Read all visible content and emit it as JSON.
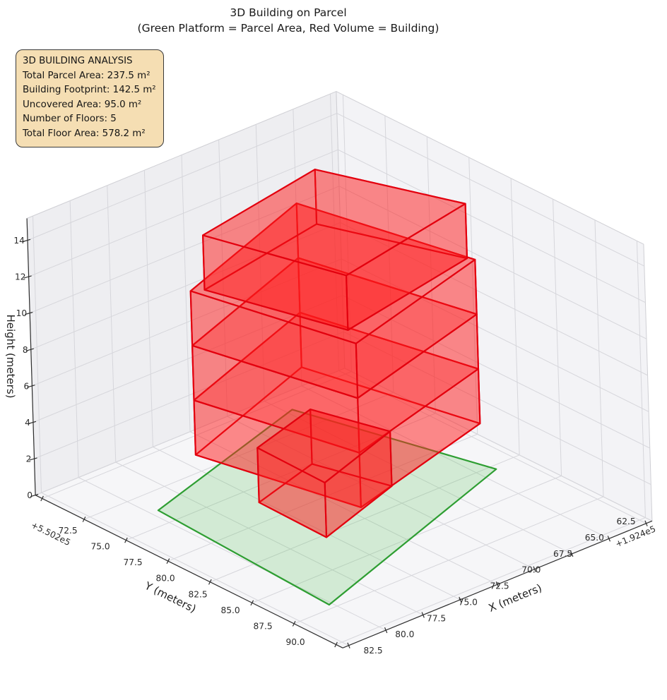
{
  "title": {
    "line1": "3D Building on Parcel",
    "line2": "(Green Platform = Parcel Area, Red Volume = Building)"
  },
  "info_box": {
    "title": "3D BUILDING ANALYSIS",
    "lines": [
      "Total Parcel Area: 237.5 m²",
      "Building Footprint: 142.5 m²",
      "Uncovered Area: 95.0 m²",
      "Number of Floors: 5",
      "Total Floor Area: 578.2 m²"
    ],
    "bg_color": "#f5deb3"
  },
  "chart_data": {
    "type": "3d-building-extrusion",
    "title": "3D Building on Parcel",
    "subtitle": "(Green Platform = Parcel Area, Red Volume = Building)",
    "axes": {
      "x": {
        "label": "X (meters)",
        "ticks": [
          62.5,
          65.0,
          67.5,
          70.0,
          72.5,
          75.0,
          77.5,
          80.0,
          82.5
        ],
        "offset_text": "+1.924e5",
        "range": [
          62.1,
          82.9
        ]
      },
      "y": {
        "label": "Y (meters)",
        "ticks": [
          72.5,
          75.0,
          77.5,
          80.0,
          82.5,
          85.0,
          87.5,
          90.0
        ],
        "offset_text": "+5.502e5",
        "range": [
          72.1,
          90.4
        ]
      },
      "z": {
        "label": "Height (meters)",
        "ticks": [
          0,
          2,
          4,
          6,
          8,
          10,
          12,
          14
        ],
        "range": [
          0,
          15.2
        ]
      }
    },
    "parcel": {
      "name": "parcel-platform",
      "polygon_xy": [
        [
          79.5,
          76.4
        ],
        [
          67.1,
          73.4
        ],
        [
          64.0,
          82.8
        ],
        [
          80.2,
          87.2
        ]
      ],
      "z": 0,
      "edge_color": "#2e9e32",
      "fill_color": "rgba(70,190,70,0.20)"
    },
    "building": {
      "n_floors": 5,
      "floor_height_m": 3,
      "edge_color": "#e3000e",
      "fill_color": "rgba(255,30,30,0.30)",
      "parts": [
        {
          "name": "floors-2-4-main-mass",
          "footprint_xy": [
            [
              78.0,
              77.4
            ],
            [
              67.6,
              74.5
            ],
            [
              65.2,
              83.0
            ],
            [
              75.8,
              85.3
            ]
          ],
          "z0": 3,
          "z1": 12,
          "slabs": [
            6,
            9
          ]
        },
        {
          "name": "floor-5-setback",
          "footprint_xy": [
            [
              77.4,
              77.7
            ],
            [
              68.4,
              76.4
            ],
            [
              65.4,
              82.7
            ],
            [
              75.1,
              84.2
            ]
          ],
          "z0": 12,
          "z1": 15,
          "slabs": []
        },
        {
          "name": "floor-1-ground-wing",
          "footprint_xy": [
            [
              75.2,
              78.6
            ],
            [
              70.4,
              77.5
            ],
            [
              69.1,
              81.1
            ],
            [
              75.3,
              82.7
            ]
          ],
          "z0": 0,
          "z1": 3,
          "slabs": []
        }
      ]
    },
    "style": {
      "pane_left": "#eeeef1",
      "pane_right": "#f3f3f6",
      "pane_floor": "#f6f6f8",
      "grid_color": "#d6d6db",
      "pane_edge": "#cfcfd4",
      "axis_line_color": "#2e2e2e",
      "tick_label_color": "#2b2b2b",
      "axis_label_color": "#1f1f1f"
    }
  }
}
